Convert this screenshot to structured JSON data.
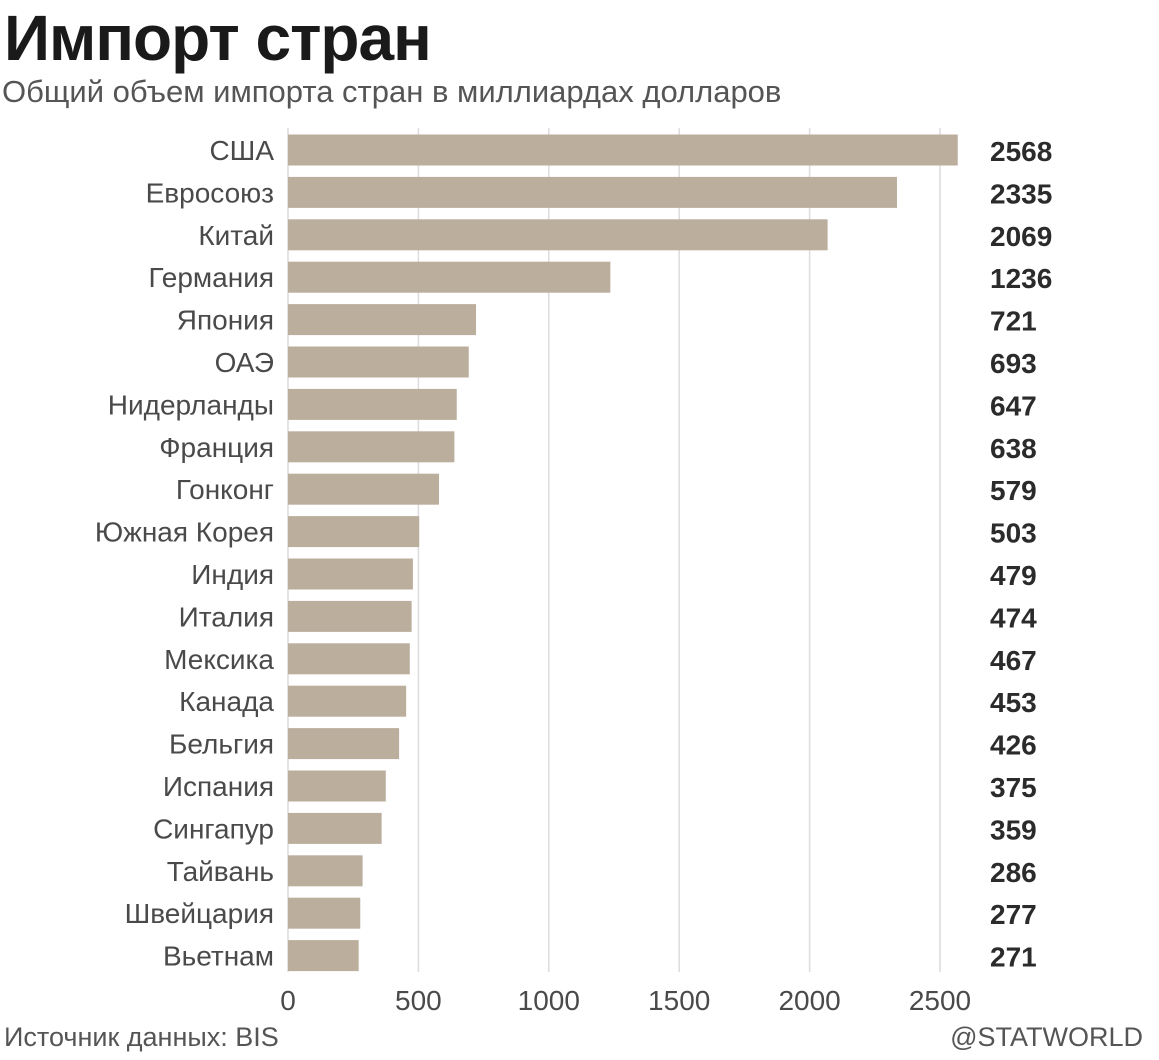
{
  "header": {
    "title": "Импорт стран",
    "subtitle": "Общий объем импорта стран в миллиардах долларов"
  },
  "footer": {
    "source": "Источник данных: BIS",
    "brand": "@STATWORLD"
  },
  "colors": {
    "bar": "#bcae9c",
    "grid": "#dcdcdc",
    "label": "#4a4a4a",
    "value": "#2b2b2b"
  },
  "chart_data": {
    "type": "bar",
    "orientation": "horizontal",
    "title": "Импорт стран",
    "subtitle": "Общий объем импорта стран в миллиардах долларов",
    "xlabel": "",
    "ylabel": "",
    "xlim": [
      0,
      2600
    ],
    "x_ticks": [
      0,
      500,
      1000,
      1500,
      2000,
      2500
    ],
    "grid": "vertical",
    "legend": "none",
    "categories": [
      "США",
      "Евросоюз",
      "Китай",
      "Германия",
      "Япония",
      "ОАЭ",
      "Нидерланды",
      "Франция",
      "Гонконг",
      "Южная Корея",
      "Индия",
      "Италия",
      "Мексика",
      "Канада",
      "Бельгия",
      "Испания",
      "Сингапур",
      "Тайвань",
      "Швейцария",
      "Вьетнам"
    ],
    "values": [
      2568,
      2335,
      2069,
      1236,
      721,
      693,
      647,
      638,
      579,
      503,
      479,
      474,
      467,
      453,
      426,
      375,
      359,
      286,
      277,
      271
    ]
  }
}
